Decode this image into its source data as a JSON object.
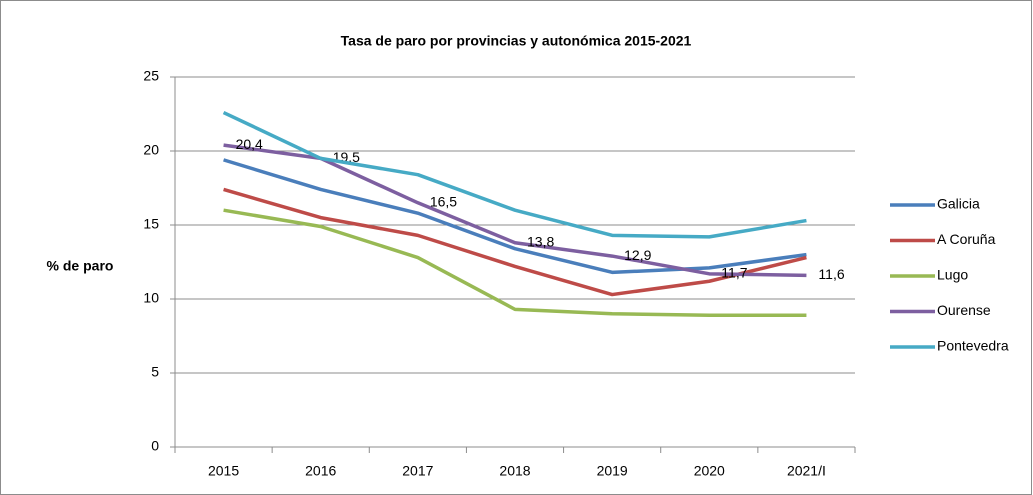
{
  "chart_data": {
    "type": "line",
    "title": "Tasa de paro por provincias y autonómica 2015-2021",
    "y_label": "% de paro",
    "categories": [
      "2015",
      "2016",
      "2017",
      "2018",
      "2019",
      "2020",
      "2021/I"
    ],
    "series": [
      {
        "name": "Galicia",
        "color": "#4a7ebb",
        "values": [
          19.4,
          17.4,
          15.8,
          13.4,
          11.8,
          12.1,
          13.0
        ]
      },
      {
        "name": "A Coruña",
        "color": "#be4b48",
        "values": [
          17.4,
          15.5,
          14.3,
          12.2,
          10.3,
          11.2,
          12.8
        ]
      },
      {
        "name": "Lugo",
        "color": "#98b954",
        "values": [
          16.0,
          14.9,
          12.8,
          9.3,
          9.0,
          8.9,
          8.9
        ]
      },
      {
        "name": "Ourense",
        "color": "#7d5fa0",
        "values": [
          20.4,
          19.5,
          16.5,
          13.8,
          12.9,
          11.7,
          11.6
        ],
        "value_labels": [
          "20,4",
          "19,5",
          "16,5",
          "13,8",
          "12,9",
          "11,7",
          "11,6"
        ]
      },
      {
        "name": "Pontevedra",
        "color": "#46aac5",
        "values": [
          22.6,
          19.5,
          18.4,
          16.0,
          14.3,
          14.2,
          15.3
        ]
      }
    ],
    "ylim": [
      0,
      25
    ],
    "yticks": [
      0,
      5,
      10,
      15,
      20,
      25
    ],
    "grid": true,
    "legend": "right"
  }
}
